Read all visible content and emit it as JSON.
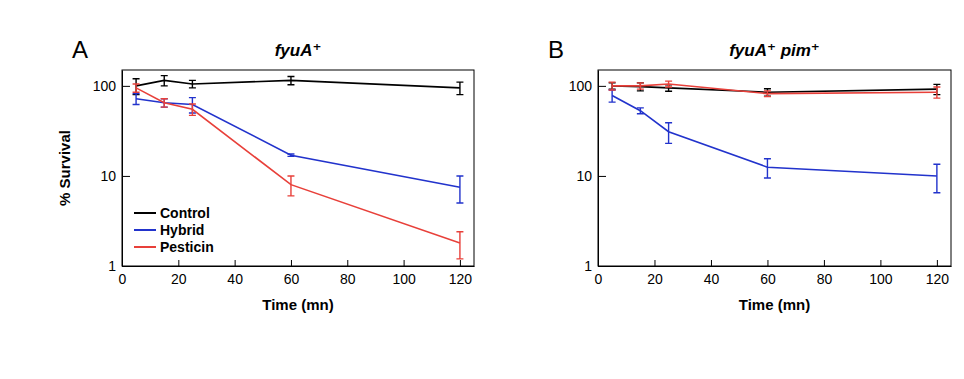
{
  "chart_data": [
    {
      "type": "line",
      "annotations": [
        "A"
      ],
      "title": "fyuA⁺",
      "x_label": "Time (mn)",
      "y_label": "% Survival",
      "x": [
        5,
        15,
        25,
        60,
        120
      ],
      "series": [
        {
          "name": "Control",
          "color": "#000000",
          "values": [
            100,
            115,
            105,
            115,
            95
          ],
          "errors": [
            20,
            15,
            10,
            12,
            15
          ]
        },
        {
          "name": "Hybrid",
          "color": "#2233cc",
          "values": [
            72,
            65,
            62,
            17,
            7.5
          ],
          "errors": [
            10,
            7,
            12,
            0.5,
            2.5
          ]
        },
        {
          "name": "Pesticin",
          "color": "#e8403a",
          "values": [
            95,
            65,
            55,
            8,
            1.8
          ],
          "errors": [
            10,
            7,
            8,
            2,
            0.6
          ]
        }
      ],
      "xlim": [
        0,
        125
      ],
      "xticks": [
        0,
        20,
        40,
        60,
        80,
        100,
        120
      ],
      "ylim": [
        1,
        150
      ],
      "yticks": [
        1,
        10,
        100
      ],
      "log": "y",
      "legend": "bottom-left"
    },
    {
      "type": "line",
      "annotations": [
        "B"
      ],
      "title": "fyuA⁺  pim⁺",
      "x_label": "Time (mn)",
      "x": [
        5,
        15,
        25,
        60,
        120
      ],
      "series": [
        {
          "color": "#000000",
          "values": [
            100,
            98,
            95,
            85,
            92
          ],
          "errors": [
            8,
            10,
            8,
            8,
            12
          ]
        },
        {
          "color": "#2233cc",
          "values": [
            78,
            53,
            31,
            12.5,
            10
          ],
          "errors": [
            12,
            4,
            8,
            3,
            3.5
          ]
        },
        {
          "color": "#e8403a",
          "values": [
            100,
            100,
            105,
            82,
            85
          ],
          "errors": [
            10,
            8,
            8,
            6,
            12
          ]
        }
      ],
      "xlim": [
        0,
        125
      ],
      "xticks": [
        0,
        20,
        40,
        60,
        80,
        100,
        120
      ],
      "ylim": [
        1,
        150
      ],
      "yticks": [
        1,
        10,
        100
      ],
      "log": "y"
    }
  ]
}
